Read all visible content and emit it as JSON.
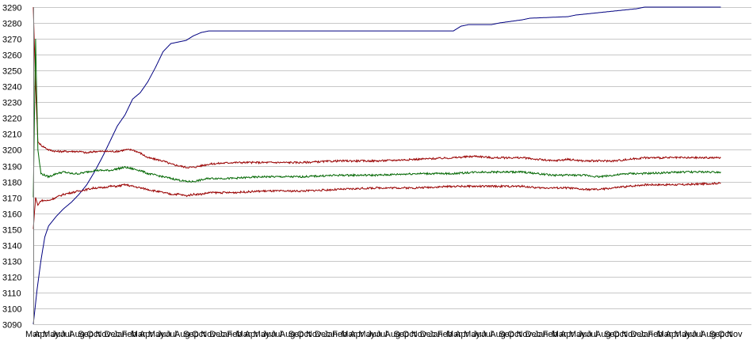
{
  "chart_data": {
    "type": "line",
    "title": "",
    "xlabel": "",
    "ylabel": "",
    "ylim": [
      3090,
      3290
    ],
    "yticks": [
      3090,
      3100,
      3110,
      3120,
      3130,
      3140,
      3150,
      3160,
      3170,
      3180,
      3190,
      3200,
      3210,
      3220,
      3230,
      3240,
      3250,
      3260,
      3270,
      3280,
      3290
    ],
    "grid": true,
    "legend": "none",
    "x_tick_labels": [
      "Mar",
      "Apr",
      "May",
      "Jun",
      "Jul",
      "Aug",
      "Sep",
      "Oct",
      "Nov",
      "Dec",
      "Jan",
      "Feb",
      "Mar",
      "Apr",
      "May",
      "Jun",
      "Jul",
      "Aug",
      "Sep",
      "Oct",
      "Nov",
      "Dec",
      "Jan",
      "Feb",
      "Mar",
      "Apr",
      "May",
      "Jun",
      "Jul",
      "Aug",
      "Sep",
      "Oct",
      "Nov",
      "Dec",
      "Jan",
      "Feb",
      "Mar",
      "Apr",
      "May",
      "Jun",
      "Jul",
      "Aug",
      "Sep",
      "Oct",
      "Nov",
      "Dec",
      "Jan",
      "Feb",
      "Mar",
      "Apr",
      "May",
      "Jun",
      "Jul",
      "Aug",
      "Sep",
      "Oct",
      "Nov",
      "Dec",
      "Jan",
      "Feb",
      "Mar",
      "Apr",
      "May",
      "Jun",
      "Jul",
      "Aug",
      "Sep",
      "Oct",
      "Nov",
      "Dec",
      "Jan",
      "Feb",
      "Mar",
      "Apr",
      "May",
      "Jun",
      "Jul",
      "Aug",
      "Sep",
      "Oct",
      "Nov"
    ],
    "series": [
      {
        "color": "#000080",
        "points": [
          [
            0,
            3090
          ],
          [
            0.5,
            3112
          ],
          [
            1,
            3130
          ],
          [
            1.5,
            3145
          ],
          [
            2,
            3152
          ],
          [
            3,
            3158
          ],
          [
            4,
            3163
          ],
          [
            5,
            3167
          ],
          [
            6,
            3172
          ],
          [
            7,
            3178
          ],
          [
            8,
            3186
          ],
          [
            9,
            3195
          ],
          [
            10,
            3205
          ],
          [
            11,
            3215
          ],
          [
            12,
            3222
          ],
          [
            13,
            3232
          ],
          [
            14,
            3236
          ],
          [
            15,
            3243
          ],
          [
            16,
            3252
          ],
          [
            17,
            3262
          ],
          [
            18,
            3267
          ],
          [
            19,
            3268
          ],
          [
            20,
            3269
          ],
          [
            21,
            3272
          ],
          [
            22,
            3274
          ],
          [
            23,
            3275
          ],
          [
            30,
            3275
          ],
          [
            40,
            3275
          ],
          [
            50,
            3275
          ],
          [
            55,
            3275
          ],
          [
            56,
            3278
          ],
          [
            57,
            3279
          ],
          [
            60,
            3279
          ],
          [
            61,
            3280
          ],
          [
            64,
            3282
          ],
          [
            65,
            3283
          ],
          [
            70,
            3284
          ],
          [
            71,
            3285
          ],
          [
            73,
            3286
          ],
          [
            75,
            3287
          ],
          [
            77,
            3288
          ],
          [
            79,
            3289
          ],
          [
            80,
            3290
          ],
          [
            90,
            3290
          ]
        ]
      },
      {
        "color": "#990000",
        "points": [
          [
            0,
            3290
          ],
          [
            0.3,
            3240
          ],
          [
            0.6,
            3205
          ],
          [
            1,
            3203
          ],
          [
            2,
            3200
          ],
          [
            3,
            3199
          ],
          [
            4,
            3199
          ],
          [
            5,
            3199
          ],
          [
            6,
            3199
          ],
          [
            7,
            3198
          ],
          [
            8,
            3199
          ],
          [
            9,
            3199
          ],
          [
            10,
            3199
          ],
          [
            11,
            3199
          ],
          [
            12,
            3200
          ],
          [
            13,
            3200
          ],
          [
            14,
            3198
          ],
          [
            15,
            3195
          ],
          [
            16,
            3194
          ],
          [
            17,
            3193
          ],
          [
            18,
            3191
          ],
          [
            19,
            3190
          ],
          [
            20,
            3189
          ],
          [
            21,
            3189
          ],
          [
            22,
            3190
          ],
          [
            23,
            3191
          ],
          [
            26,
            3192
          ],
          [
            30,
            3192
          ],
          [
            35,
            3192
          ],
          [
            40,
            3193
          ],
          [
            45,
            3193
          ],
          [
            50,
            3194
          ],
          [
            55,
            3195
          ],
          [
            58,
            3196
          ],
          [
            60,
            3195
          ],
          [
            62,
            3195
          ],
          [
            64,
            3195
          ],
          [
            66,
            3194
          ],
          [
            68,
            3193
          ],
          [
            70,
            3194
          ],
          [
            72,
            3193
          ],
          [
            74,
            3193
          ],
          [
            76,
            3193
          ],
          [
            78,
            3194
          ],
          [
            80,
            3195
          ],
          [
            85,
            3195
          ],
          [
            90,
            3195
          ]
        ]
      },
      {
        "color": "#006600",
        "points": [
          [
            0,
            3170
          ],
          [
            0.3,
            3270
          ],
          [
            0.6,
            3200
          ],
          [
            1,
            3185
          ],
          [
            2,
            3183
          ],
          [
            3,
            3185
          ],
          [
            4,
            3186
          ],
          [
            5,
            3185
          ],
          [
            6,
            3185
          ],
          [
            7,
            3186
          ],
          [
            8,
            3187
          ],
          [
            9,
            3187
          ],
          [
            10,
            3187
          ],
          [
            11,
            3188
          ],
          [
            12,
            3189
          ],
          [
            13,
            3188
          ],
          [
            14,
            3187
          ],
          [
            15,
            3185
          ],
          [
            16,
            3184
          ],
          [
            17,
            3183
          ],
          [
            18,
            3182
          ],
          [
            19,
            3181
          ],
          [
            20,
            3180
          ],
          [
            21,
            3180
          ],
          [
            22,
            3181
          ],
          [
            23,
            3182
          ],
          [
            26,
            3182
          ],
          [
            30,
            3183
          ],
          [
            35,
            3183
          ],
          [
            40,
            3184
          ],
          [
            45,
            3184
          ],
          [
            50,
            3185
          ],
          [
            55,
            3185
          ],
          [
            58,
            3186
          ],
          [
            60,
            3186
          ],
          [
            62,
            3186
          ],
          [
            64,
            3186
          ],
          [
            66,
            3185
          ],
          [
            68,
            3184
          ],
          [
            70,
            3184
          ],
          [
            72,
            3184
          ],
          [
            74,
            3183
          ],
          [
            76,
            3184
          ],
          [
            78,
            3185
          ],
          [
            80,
            3185
          ],
          [
            85,
            3186
          ],
          [
            90,
            3186
          ]
        ]
      },
      {
        "color": "#990000",
        "points": [
          [
            0,
            3150
          ],
          [
            0.3,
            3170
          ],
          [
            0.6,
            3165
          ],
          [
            1,
            3168
          ],
          [
            2,
            3168
          ],
          [
            3,
            3170
          ],
          [
            4,
            3172
          ],
          [
            5,
            3173
          ],
          [
            6,
            3174
          ],
          [
            7,
            3175
          ],
          [
            8,
            3176
          ],
          [
            9,
            3176
          ],
          [
            10,
            3177
          ],
          [
            11,
            3177
          ],
          [
            12,
            3178
          ],
          [
            13,
            3177
          ],
          [
            14,
            3176
          ],
          [
            15,
            3175
          ],
          [
            16,
            3174
          ],
          [
            17,
            3173
          ],
          [
            18,
            3172
          ],
          [
            19,
            3172
          ],
          [
            20,
            3171
          ],
          [
            21,
            3172
          ],
          [
            22,
            3172
          ],
          [
            23,
            3173
          ],
          [
            26,
            3173
          ],
          [
            30,
            3174
          ],
          [
            35,
            3174
          ],
          [
            40,
            3175
          ],
          [
            45,
            3176
          ],
          [
            50,
            3176
          ],
          [
            55,
            3177
          ],
          [
            58,
            3177
          ],
          [
            60,
            3177
          ],
          [
            62,
            3177
          ],
          [
            64,
            3177
          ],
          [
            66,
            3176
          ],
          [
            68,
            3176
          ],
          [
            70,
            3176
          ],
          [
            72,
            3175
          ],
          [
            74,
            3175
          ],
          [
            76,
            3176
          ],
          [
            78,
            3177
          ],
          [
            80,
            3178
          ],
          [
            85,
            3178
          ],
          [
            90,
            3179
          ]
        ]
      }
    ]
  }
}
